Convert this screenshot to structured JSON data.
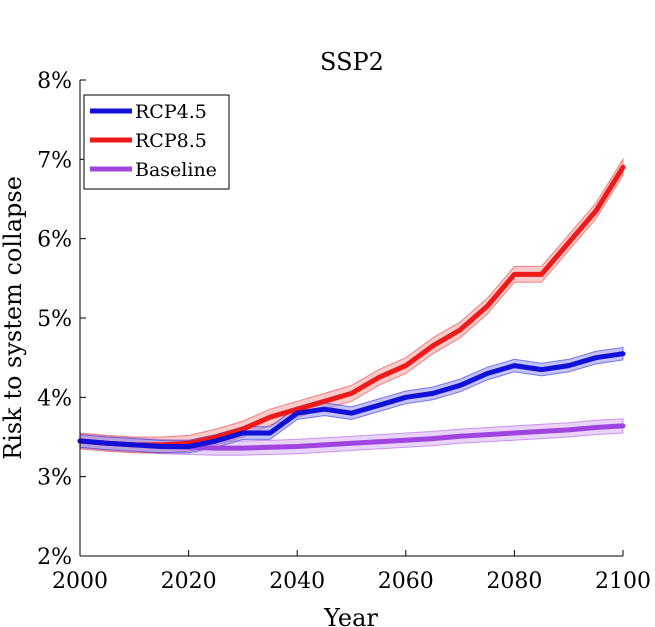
{
  "chart_data": {
    "type": "line",
    "title": "SSP2",
    "xlabel": "Year",
    "ylabel": "Risk to system collapse",
    "xlim": [
      2000,
      2100
    ],
    "ylim": [
      2,
      8
    ],
    "x_ticks": [
      2000,
      2020,
      2040,
      2060,
      2080,
      2100
    ],
    "x_tick_labels": [
      "2000",
      "2020",
      "2040",
      "2060",
      "2080",
      "2100"
    ],
    "y_ticks": [
      2,
      3,
      4,
      5,
      6,
      7,
      8
    ],
    "y_tick_labels": [
      "2%",
      "3%",
      "4%",
      "5%",
      "6%",
      "7%",
      "8%"
    ],
    "grid": false,
    "legend_position": "top-left",
    "x": [
      2000,
      2005,
      2010,
      2015,
      2020,
      2025,
      2030,
      2035,
      2040,
      2045,
      2050,
      2055,
      2060,
      2065,
      2070,
      2075,
      2080,
      2085,
      2090,
      2095,
      2100
    ],
    "series": [
      {
        "name": "RCP4.5",
        "color": "#1010d8",
        "band_color": "#8f8ff0",
        "values": [
          3.45,
          3.42,
          3.4,
          3.38,
          3.38,
          3.45,
          3.55,
          3.55,
          3.8,
          3.85,
          3.8,
          3.9,
          4.0,
          4.05,
          4.15,
          4.3,
          4.4,
          4.35,
          4.4,
          4.5,
          4.55
        ],
        "uncertainty": 0.08
      },
      {
        "name": "RCP8.5",
        "color": "#ee1a1a",
        "band_color": "#f2a0a0",
        "values": [
          3.45,
          3.42,
          3.4,
          3.4,
          3.42,
          3.5,
          3.6,
          3.75,
          3.85,
          3.95,
          4.05,
          4.25,
          4.4,
          4.65,
          4.85,
          5.15,
          5.55,
          5.55,
          5.95,
          6.35,
          6.9
        ],
        "uncertainty": 0.1
      },
      {
        "name": "Baseline",
        "color": "#a044e0",
        "band_color": "#d7aff2",
        "values": [
          3.45,
          3.42,
          3.4,
          3.38,
          3.37,
          3.36,
          3.36,
          3.37,
          3.38,
          3.4,
          3.42,
          3.44,
          3.46,
          3.48,
          3.51,
          3.53,
          3.55,
          3.57,
          3.59,
          3.62,
          3.64
        ],
        "uncertainty": 0.09
      }
    ]
  }
}
